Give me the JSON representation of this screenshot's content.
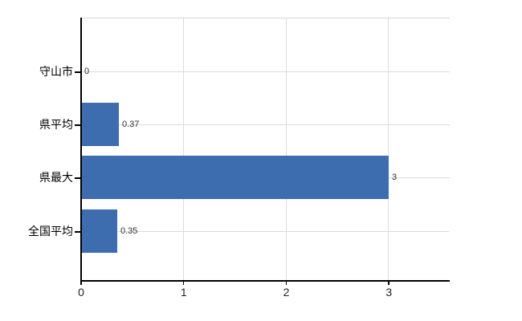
{
  "chart_data": {
    "type": "bar",
    "orientation": "horizontal",
    "title": "",
    "xlabel": "",
    "ylabel": "",
    "categories": [
      "守山市",
      "県平均",
      "県最大",
      "全国平均"
    ],
    "values": [
      0,
      0.37,
      3,
      0.35
    ],
    "value_labels": [
      "0",
      "0.37",
      "3",
      "0.35"
    ],
    "x_tick_values": [
      0,
      1,
      2,
      3
    ],
    "x_tick_labels": [
      "0",
      "1",
      "2",
      "3"
    ],
    "xlim": [
      0,
      3.6
    ],
    "grid": true,
    "legend_position": "none",
    "colors": {
      "bar": "#3d6dae",
      "grid": "#dcdcdc",
      "plot_border_top": "#d6d6d6",
      "axis": "#000000",
      "category_label": "#000000",
      "value_label": "#333333",
      "tick_label": "#222222",
      "background": "#ffffff"
    }
  }
}
